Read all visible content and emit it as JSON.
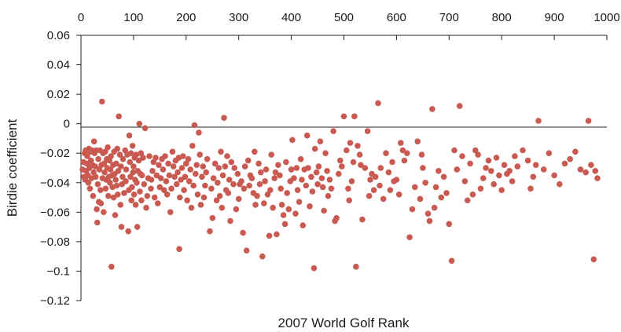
{
  "chart_data": {
    "type": "scatter",
    "title": "",
    "xlabel": "2007 World Golf Rank",
    "ylabel": "Birdie coefficient",
    "xlim": [
      0,
      1000
    ],
    "ylim": [
      -0.12,
      0.06
    ],
    "x_ticks": [
      "0",
      "100",
      "200",
      "300",
      "400",
      "500",
      "600",
      "700",
      "800",
      "900",
      "1000"
    ],
    "y_ticks": [
      "0.06",
      "0.04",
      "0.02",
      "0",
      "−0.02",
      "−0.04",
      "−0.06",
      "−0.08",
      "−0.1",
      "−0.12"
    ],
    "x_axis_position": "top",
    "grid": false,
    "legend": "none",
    "marker_color": "#c85a52",
    "points": [
      [
        3,
        -0.031
      ],
      [
        5,
        -0.026
      ],
      [
        6,
        -0.036
      ],
      [
        7,
        -0.02
      ],
      [
        8,
        -0.038
      ],
      [
        9,
        -0.018
      ],
      [
        10,
        -0.032
      ],
      [
        11,
        -0.027
      ],
      [
        12,
        -0.022
      ],
      [
        13,
        -0.035
      ],
      [
        14,
        -0.04
      ],
      [
        15,
        -0.017
      ],
      [
        16,
        -0.03
      ],
      [
        17,
        -0.044
      ],
      [
        18,
        -0.019
      ],
      [
        19,
        -0.025
      ],
      [
        20,
        -0.037
      ],
      [
        21,
        -0.018
      ],
      [
        22,
        -0.028
      ],
      [
        23,
        -0.049
      ],
      [
        24,
        -0.033
      ],
      [
        25,
        -0.012
      ],
      [
        26,
        -0.02
      ],
      [
        27,
        -0.029
      ],
      [
        28,
        -0.036
      ],
      [
        29,
        -0.018
      ],
      [
        30,
        -0.058
      ],
      [
        31,
        -0.067
      ],
      [
        32,
        -0.041
      ],
      [
        33,
        -0.024
      ],
      [
        34,
        -0.053
      ],
      [
        35,
        -0.031
      ],
      [
        36,
        -0.018
      ],
      [
        37,
        -0.045
      ],
      [
        38,
        -0.054
      ],
      [
        39,
        -0.028
      ],
      [
        40,
        0.015
      ],
      [
        41,
        -0.037
      ],
      [
        42,
        -0.02
      ],
      [
        43,
        -0.06
      ],
      [
        44,
        -0.027
      ],
      [
        45,
        -0.033
      ],
      [
        46,
        -0.019
      ],
      [
        47,
        -0.044
      ],
      [
        48,
        -0.038
      ],
      [
        49,
        -0.024
      ],
      [
        50,
        -0.03
      ],
      [
        51,
        -0.016
      ],
      [
        52,
        -0.049
      ],
      [
        53,
        -0.036
      ],
      [
        54,
        -0.025
      ],
      [
        55,
        -0.04
      ],
      [
        56,
        -0.031
      ],
      [
        57,
        -0.022
      ],
      [
        58,
        -0.097
      ],
      [
        59,
        -0.035
      ],
      [
        60,
        -0.043
      ],
      [
        61,
        -0.028
      ],
      [
        62,
        -0.05
      ],
      [
        63,
        -0.019
      ],
      [
        64,
        -0.034
      ],
      [
        65,
        -0.062
      ],
      [
        66,
        -0.038
      ],
      [
        67,
        -0.027
      ],
      [
        68,
        -0.042
      ],
      [
        69,
        -0.017
      ],
      [
        70,
        -0.048
      ],
      [
        71,
        -0.032
      ],
      [
        72,
        0.005
      ],
      [
        74,
        -0.021
      ],
      [
        75,
        -0.055
      ],
      [
        76,
        -0.029
      ],
      [
        77,
        -0.07
      ],
      [
        78,
        -0.041
      ],
      [
        79,
        -0.036
      ],
      [
        80,
        -0.024
      ],
      [
        82,
        -0.047
      ],
      [
        84,
        -0.018
      ],
      [
        85,
        -0.039
      ],
      [
        86,
        -0.031
      ],
      [
        88,
        -0.021
      ],
      [
        90,
        -0.073
      ],
      [
        91,
        -0.045
      ],
      [
        92,
        -0.008
      ],
      [
        93,
        -0.026
      ],
      [
        94,
        -0.036
      ],
      [
        95,
        -0.02
      ],
      [
        96,
        -0.052
      ],
      [
        97,
        -0.043
      ],
      [
        98,
        -0.015
      ],
      [
        99,
        -0.033
      ],
      [
        100,
        -0.029
      ],
      [
        101,
        -0.048
      ],
      [
        102,
        -0.023
      ],
      [
        103,
        -0.038
      ],
      [
        104,
        -0.055
      ],
      [
        105,
        -0.021
      ],
      [
        106,
        -0.04
      ],
      [
        107,
        -0.07
      ],
      [
        108,
        -0.032
      ],
      [
        110,
        -0.025
      ],
      [
        111,
        0.0
      ],
      [
        112,
        -0.046
      ],
      [
        113,
        -0.034
      ],
      [
        114,
        -0.02
      ],
      [
        115,
        -0.052
      ],
      [
        116,
        -0.035
      ],
      [
        118,
        -0.023
      ],
      [
        120,
        -0.041
      ],
      [
        122,
        -0.003
      ],
      [
        124,
        -0.057
      ],
      [
        126,
        -0.049
      ],
      [
        128,
        -0.037
      ],
      [
        130,
        -0.022
      ],
      [
        133,
        -0.044
      ],
      [
        134,
        -0.038
      ],
      [
        136,
        -0.032
      ],
      [
        138,
        -0.026
      ],
      [
        140,
        -0.05
      ],
      [
        142,
        -0.023
      ],
      [
        144,
        -0.035
      ],
      [
        146,
        -0.054
      ],
      [
        148,
        -0.028
      ],
      [
        150,
        -0.043
      ],
      [
        152,
        -0.037
      ],
      [
        154,
        -0.024
      ],
      [
        156,
        -0.031
      ],
      [
        158,
        -0.045
      ],
      [
        160,
        -0.022
      ],
      [
        162,
        -0.039
      ],
      [
        164,
        -0.048
      ],
      [
        166,
        -0.027
      ],
      [
        168,
        -0.035
      ],
      [
        170,
        -0.06
      ],
      [
        172,
        -0.044
      ],
      [
        174,
        -0.019
      ],
      [
        176,
        -0.029
      ],
      [
        178,
        -0.036
      ],
      [
        180,
        -0.025
      ],
      [
        182,
        -0.041
      ],
      [
        184,
        -0.033
      ],
      [
        186,
        -0.023
      ],
      [
        187,
        -0.085
      ],
      [
        188,
        -0.05
      ],
      [
        190,
        -0.038
      ],
      [
        192,
        -0.03
      ],
      [
        194,
        -0.022
      ],
      [
        196,
        -0.045
      ],
      [
        198,
        -0.036
      ],
      [
        200,
        -0.027
      ],
      [
        202,
        -0.052
      ],
      [
        204,
        -0.024
      ],
      [
        206,
        -0.039
      ],
      [
        208,
        -0.031
      ],
      [
        210,
        -0.057
      ],
      [
        212,
        -0.015
      ],
      [
        214,
        -0.042
      ],
      [
        216,
        -0.001
      ],
      [
        218,
        -0.034
      ],
      [
        220,
        -0.028
      ],
      [
        222,
        -0.048
      ],
      [
        224,
        -0.006
      ],
      [
        226,
        -0.021
      ],
      [
        228,
        -0.055
      ],
      [
        230,
        -0.036
      ],
      [
        232,
        -0.029
      ],
      [
        234,
        -0.05
      ],
      [
        236,
        -0.042
      ],
      [
        238,
        -0.033
      ],
      [
        240,
        -0.024
      ],
      [
        245,
        -0.073
      ],
      [
        248,
        -0.044
      ],
      [
        250,
        -0.064
      ],
      [
        252,
        -0.037
      ],
      [
        255,
        -0.027
      ],
      [
        258,
        -0.052
      ],
      [
        260,
        -0.04
      ],
      [
        262,
        -0.03
      ],
      [
        264,
        -0.049
      ],
      [
        266,
        -0.019
      ],
      [
        268,
        -0.057
      ],
      [
        270,
        -0.035
      ],
      [
        272,
        0.004
      ],
      [
        274,
        -0.029
      ],
      [
        276,
        -0.045
      ],
      [
        278,
        -0.022
      ],
      [
        280,
        -0.047
      ],
      [
        282,
        -0.038
      ],
      [
        284,
        -0.066
      ],
      [
        286,
        -0.026
      ],
      [
        290,
        -0.041
      ],
      [
        292,
        -0.03
      ],
      [
        295,
        -0.058
      ],
      [
        298,
        -0.034
      ],
      [
        300,
        -0.051
      ],
      [
        302,
        -0.041
      ],
      [
        305,
        -0.039
      ],
      [
        308,
        -0.074
      ],
      [
        310,
        -0.044
      ],
      [
        312,
        -0.029
      ],
      [
        315,
        -0.086
      ],
      [
        318,
        -0.025
      ],
      [
        320,
        -0.042
      ],
      [
        322,
        -0.035
      ],
      [
        325,
        -0.037
      ],
      [
        328,
        -0.047
      ],
      [
        330,
        -0.019
      ],
      [
        332,
        -0.055
      ],
      [
        335,
        -0.049
      ],
      [
        338,
        -0.027
      ],
      [
        340,
        -0.041
      ],
      [
        342,
        -0.033
      ],
      [
        345,
        -0.09
      ],
      [
        348,
        -0.054
      ],
      [
        350,
        -0.039
      ],
      [
        352,
        -0.031
      ],
      [
        355,
        -0.048
      ],
      [
        358,
        -0.076
      ],
      [
        360,
        -0.045
      ],
      [
        362,
        -0.021
      ],
      [
        365,
        -0.057
      ],
      [
        368,
        -0.037
      ],
      [
        370,
        -0.033
      ],
      [
        372,
        -0.075
      ],
      [
        375,
        -0.028
      ],
      [
        378,
        -0.035
      ],
      [
        380,
        -0.044
      ],
      [
        382,
        -0.055
      ],
      [
        385,
        -0.062
      ],
      [
        388,
        -0.068
      ],
      [
        390,
        -0.026
      ],
      [
        392,
        -0.047
      ],
      [
        395,
        -0.058
      ],
      [
        398,
        -0.039
      ],
      [
        400,
        -0.031
      ],
      [
        402,
        -0.011
      ],
      [
        405,
        -0.037
      ],
      [
        408,
        -0.061
      ],
      [
        410,
        -0.03
      ],
      [
        412,
        -0.045
      ],
      [
        415,
        -0.053
      ],
      [
        418,
        -0.024
      ],
      [
        420,
        -0.038
      ],
      [
        422,
        -0.069
      ],
      [
        425,
        -0.031
      ],
      [
        428,
        -0.042
      ],
      [
        430,
        -0.008
      ],
      [
        432,
        -0.03
      ],
      [
        435,
        -0.056
      ],
      [
        438,
        -0.036
      ],
      [
        440,
        -0.046
      ],
      [
        443,
        -0.098
      ],
      [
        445,
        -0.017
      ],
      [
        448,
        -0.033
      ],
      [
        450,
        -0.041
      ],
      [
        452,
        -0.029
      ],
      [
        455,
        -0.012
      ],
      [
        458,
        -0.037
      ],
      [
        460,
        -0.043
      ],
      [
        462,
        -0.059
      ],
      [
        465,
        -0.02
      ],
      [
        468,
        -0.032
      ],
      [
        470,
        -0.049
      ],
      [
        473,
        -0.038
      ],
      [
        476,
        -0.044
      ],
      [
        480,
        -0.005
      ],
      [
        483,
        -0.066
      ],
      [
        486,
        -0.064
      ],
      [
        490,
        -0.034
      ],
      [
        493,
        -0.025
      ],
      [
        496,
        -0.029
      ],
      [
        500,
        0.005
      ],
      [
        505,
        -0.018
      ],
      [
        508,
        -0.044
      ],
      [
        510,
        -0.052
      ],
      [
        512,
        -0.013
      ],
      [
        515,
        -0.039
      ],
      [
        518,
        -0.026
      ],
      [
        520,
        0.005
      ],
      [
        523,
        -0.097
      ],
      [
        526,
        -0.015
      ],
      [
        530,
        -0.021
      ],
      [
        532,
        -0.028
      ],
      [
        535,
        -0.065
      ],
      [
        540,
        -0.03
      ],
      [
        545,
        -0.005
      ],
      [
        548,
        -0.049
      ],
      [
        550,
        -0.038
      ],
      [
        553,
        -0.034
      ],
      [
        557,
        -0.045
      ],
      [
        560,
        -0.036
      ],
      [
        565,
        0.014
      ],
      [
        568,
        -0.042
      ],
      [
        570,
        -0.03
      ],
      [
        575,
        -0.051
      ],
      [
        580,
        -0.02
      ],
      [
        585,
        -0.033
      ],
      [
        588,
        -0.045
      ],
      [
        592,
        -0.026
      ],
      [
        595,
        -0.039
      ],
      [
        600,
        -0.038
      ],
      [
        605,
        -0.048
      ],
      [
        608,
        -0.013
      ],
      [
        612,
        -0.018
      ],
      [
        615,
        -0.025
      ],
      [
        620,
        -0.02
      ],
      [
        625,
        -0.077
      ],
      [
        630,
        -0.058
      ],
      [
        635,
        -0.043
      ],
      [
        640,
        -0.012
      ],
      [
        645,
        -0.051
      ],
      [
        648,
        -0.021
      ],
      [
        650,
        -0.03
      ],
      [
        655,
        -0.04
      ],
      [
        660,
        -0.061
      ],
      [
        663,
        -0.066
      ],
      [
        668,
        0.01
      ],
      [
        672,
        -0.057
      ],
      [
        675,
        -0.043
      ],
      [
        680,
        -0.032
      ],
      [
        685,
        -0.05
      ],
      [
        690,
        -0.036
      ],
      [
        695,
        -0.047
      ],
      [
        700,
        -0.068
      ],
      [
        705,
        -0.093
      ],
      [
        710,
        -0.018
      ],
      [
        715,
        -0.031
      ],
      [
        720,
        0.012
      ],
      [
        725,
        -0.022
      ],
      [
        730,
        -0.039
      ],
      [
        735,
        -0.052
      ],
      [
        740,
        -0.027
      ],
      [
        745,
        -0.048
      ],
      [
        750,
        -0.018
      ],
      [
        755,
        -0.021
      ],
      [
        760,
        -0.044
      ],
      [
        765,
        -0.037
      ],
      [
        770,
        -0.03
      ],
      [
        775,
        -0.025
      ],
      [
        780,
        -0.032
      ],
      [
        785,
        -0.041
      ],
      [
        790,
        -0.023
      ],
      [
        795,
        -0.035
      ],
      [
        800,
        -0.045
      ],
      [
        805,
        -0.028
      ],
      [
        810,
        -0.034
      ],
      [
        815,
        -0.032
      ],
      [
        820,
        -0.039
      ],
      [
        825,
        -0.022
      ],
      [
        830,
        -0.029
      ],
      [
        840,
        -0.018
      ],
      [
        850,
        -0.025
      ],
      [
        855,
        -0.044
      ],
      [
        860,
        -0.036
      ],
      [
        865,
        -0.028
      ],
      [
        870,
        0.002
      ],
      [
        880,
        -0.031
      ],
      [
        890,
        -0.02
      ],
      [
        900,
        -0.035
      ],
      [
        910,
        -0.041
      ],
      [
        920,
        -0.027
      ],
      [
        930,
        -0.024
      ],
      [
        940,
        -0.019
      ],
      [
        950,
        -0.031
      ],
      [
        960,
        -0.033
      ],
      [
        965,
        0.002
      ],
      [
        970,
        -0.028
      ],
      [
        975,
        -0.092
      ],
      [
        978,
        -0.032
      ],
      [
        982,
        -0.037
      ]
    ]
  }
}
